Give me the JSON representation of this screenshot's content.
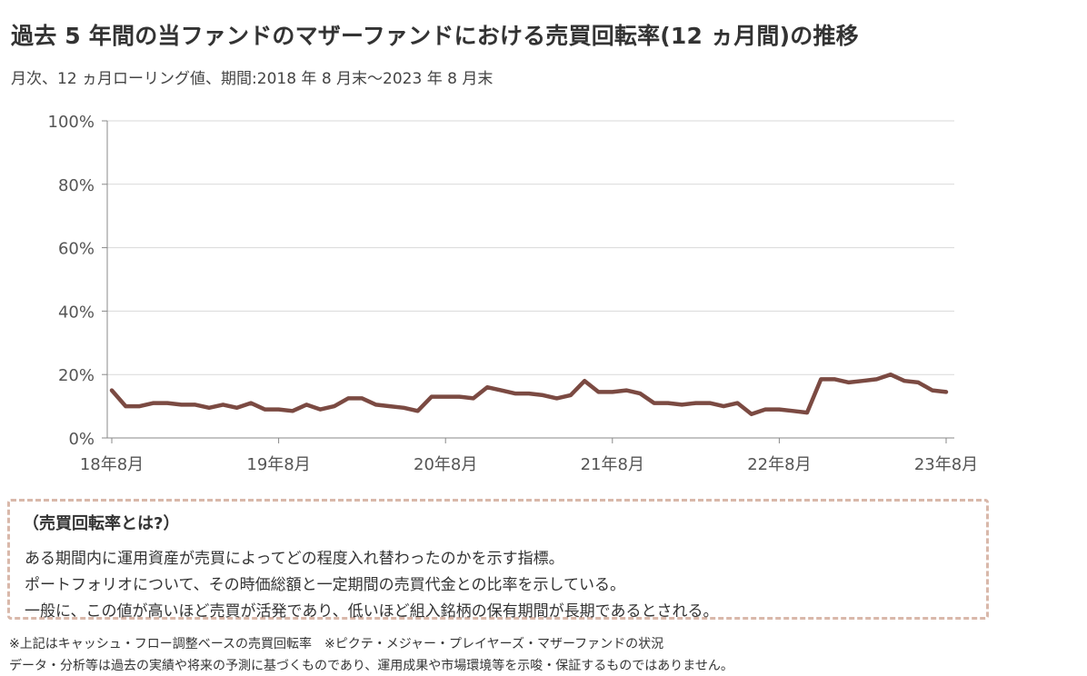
{
  "title": "過去 5 年間の当ファンドのマザーファンドにおける売買回転率(12 ヵ月間)の推移",
  "subtitle": "月次、12 ヵ月ローリング値、期間:2018 年 8 月末～2023 年 8 月末",
  "definition": {
    "heading": "（売買回転率とは?）",
    "lines": [
      "ある期間内に運用資産が売買によってどの程度入れ替わったのかを示す指標。",
      "ポートフォリオについて、その時価総額と一定期間の売買代金との比率を示している。",
      "一般に、この値が高いほど売買が活発であり、低いほど組入銘柄の保有期間が長期であるとされる。"
    ]
  },
  "notes": [
    "※上記はキャッシュ・フロー調整ベースの売買回転率　※ピクテ・メジャー・プレイヤーズ・マザーファンドの状況",
    "データ・分析等は過去の実績や将来の予測に基づくものであり、運用成果や市場環境等を示唆・保証するものではありません。"
  ],
  "colors": {
    "line": "#7b4a42",
    "grid": "#d9d9d9",
    "box_border": "#d9b8aa"
  },
  "chart_data": {
    "type": "line",
    "ylim": [
      0,
      100
    ],
    "y_ticks": [
      "0%",
      "20%",
      "40%",
      "60%",
      "80%",
      "100%"
    ],
    "x_ticks": [
      "18年8月",
      "19年8月",
      "20年8月",
      "21年8月",
      "22年8月",
      "23年8月"
    ],
    "grid": "horizontal",
    "x": [
      "2018-08",
      "2018-09",
      "2018-10",
      "2018-11",
      "2018-12",
      "2019-01",
      "2019-02",
      "2019-03",
      "2019-04",
      "2019-05",
      "2019-06",
      "2019-07",
      "2019-08",
      "2019-09",
      "2019-10",
      "2019-11",
      "2019-12",
      "2020-01",
      "2020-02",
      "2020-03",
      "2020-04",
      "2020-05",
      "2020-06",
      "2020-07",
      "2020-08",
      "2020-09",
      "2020-10",
      "2020-11",
      "2020-12",
      "2021-01",
      "2021-02",
      "2021-03",
      "2021-04",
      "2021-05",
      "2021-06",
      "2021-07",
      "2021-08",
      "2021-09",
      "2021-10",
      "2021-11",
      "2021-12",
      "2022-01",
      "2022-02",
      "2022-03",
      "2022-04",
      "2022-05",
      "2022-06",
      "2022-07",
      "2022-08",
      "2022-09",
      "2022-10",
      "2022-11",
      "2022-12",
      "2023-01",
      "2023-02",
      "2023-03",
      "2023-04",
      "2023-05",
      "2023-06",
      "2023-07",
      "2023-08"
    ],
    "series": [
      {
        "values": [
          15,
          10,
          10,
          11,
          11,
          10.5,
          10.5,
          9.5,
          10.5,
          9.5,
          11,
          9,
          9,
          8.5,
          10.5,
          9,
          10,
          12.5,
          12.5,
          10.5,
          10,
          9.5,
          8.5,
          13,
          13,
          13,
          12.5,
          16,
          15,
          14,
          14,
          13.5,
          12.5,
          13.5,
          18,
          14.5,
          14.5,
          15,
          14,
          11,
          11,
          10.5,
          11,
          11,
          10,
          11,
          7.5,
          9,
          9,
          8.5,
          8,
          18.5,
          18.5,
          17.5,
          18,
          18.5,
          20,
          18,
          17.5,
          15,
          14.5
        ]
      }
    ]
  }
}
